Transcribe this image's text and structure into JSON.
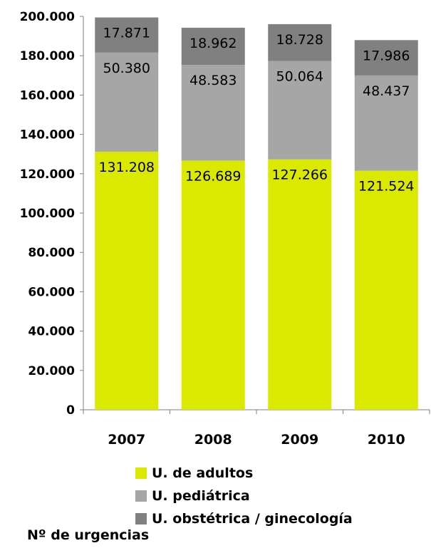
{
  "chart_data": {
    "type": "bar",
    "stacked": true,
    "categories": [
      "2007",
      "2008",
      "2009",
      "2010"
    ],
    "series": [
      {
        "name": "U. de adultos",
        "color": "#dbe800",
        "values": [
          131208,
          126689,
          127266,
          121524
        ],
        "labels": [
          "131.208",
          "126.689",
          "127.266",
          "121.524"
        ]
      },
      {
        "name": "U. pediátrica",
        "color": "#a6a6a6",
        "values": [
          50380,
          48583,
          50064,
          48437
        ],
        "labels": [
          "50.380",
          "48.583",
          "50.064",
          "48.437"
        ]
      },
      {
        "name": "U. obstétrica / ginecología",
        "color": "#808080",
        "values": [
          17871,
          18962,
          18728,
          17986
        ],
        "labels": [
          "17.871",
          "18.962",
          "18.728",
          "17.986"
        ]
      }
    ],
    "ylim": [
      0,
      200000
    ],
    "yticks": [
      0,
      20000,
      40000,
      60000,
      80000,
      100000,
      120000,
      140000,
      160000,
      180000,
      200000
    ],
    "ytick_labels": [
      "0",
      "20.000",
      "40.000",
      "60.000",
      "80.000",
      "100.000",
      "120.000",
      "140.000",
      "160.000",
      "180.000",
      "200.000"
    ],
    "xlabel": "",
    "ylabel": "",
    "legend_position": "bottom",
    "grid": false
  },
  "footnote": "Nº de urgencias"
}
